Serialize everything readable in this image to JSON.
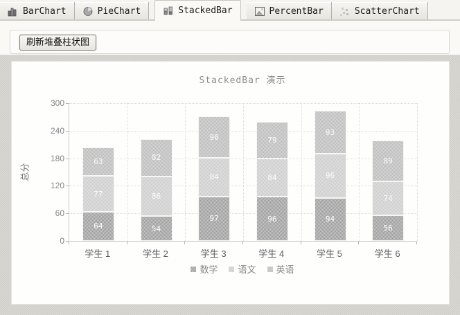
{
  "tabs": {
    "items": [
      {
        "label": "BarChart",
        "icon": "bar-chart-icon",
        "selected": false
      },
      {
        "label": "PieChart",
        "icon": "pie-chart-icon",
        "selected": false
      },
      {
        "label": "StackedBar",
        "icon": "stacked-bar-icon",
        "selected": true
      },
      {
        "label": "PercentBar",
        "icon": "percent-bar-icon",
        "selected": false
      },
      {
        "label": "ScatterChart",
        "icon": "scatter-chart-icon",
        "selected": false
      }
    ]
  },
  "toolbar": {
    "refresh_label": "刷新堆叠柱状图"
  },
  "chart_data": {
    "type": "bar",
    "stacked": true,
    "title": "StackedBar 演示",
    "xlabel": "",
    "ylabel": "总分",
    "categories": [
      "学生 1",
      "学生 2",
      "学生 3",
      "学生 4",
      "学生 5",
      "学生 6"
    ],
    "series": [
      {
        "name": "数学",
        "color": "#9a9a9a",
        "values": [
          64,
          54,
          97,
          96,
          94,
          56
        ]
      },
      {
        "name": "语文",
        "color": "#cbcbcb",
        "values": [
          77,
          86,
          84,
          84,
          96,
          74
        ]
      },
      {
        "name": "英语",
        "color": "#b9b9b9",
        "values": [
          63,
          82,
          90,
          79,
          93,
          89
        ]
      }
    ],
    "ylim": [
      0,
      300
    ],
    "yticks": [
      0,
      60,
      120,
      180,
      240,
      300
    ],
    "grid": true,
    "legend_position": "bottom",
    "value_labels": "white, centered in each segment"
  }
}
